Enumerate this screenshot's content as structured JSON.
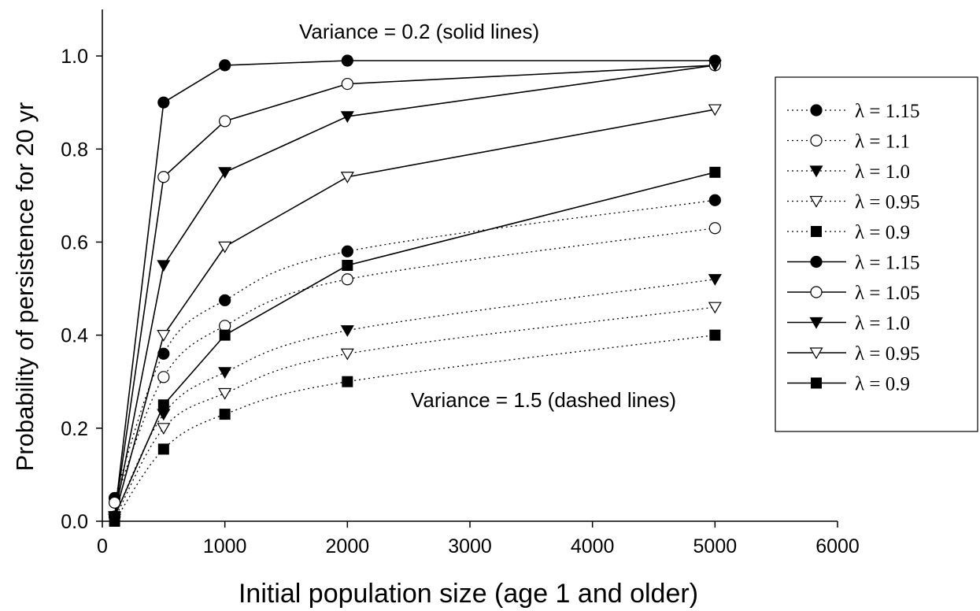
{
  "chart_data": {
    "type": "line",
    "xlabel": "Initial population size (age 1 and older)",
    "ylabel": "Probability of persistence for 20 yr",
    "xlim": [
      0,
      6000
    ],
    "ylim": [
      0,
      1.1
    ],
    "xticks": [
      0,
      1000,
      2000,
      3000,
      4000,
      5000,
      6000
    ],
    "yticks": [
      0.0,
      0.2,
      0.4,
      0.6,
      0.8,
      1.0
    ],
    "ytick_labels": [
      "0.0",
      "0.2",
      "0.4",
      "0.6",
      "0.8",
      "1.0"
    ],
    "x": [
      100,
      500,
      1000,
      2000,
      5000
    ],
    "annotations": [
      {
        "text": "Variance = 0.2 (solid lines)",
        "x": 2400,
        "y": 1.045
      },
      {
        "text": "Variance = 1.5 (dashed lines)",
        "x": 2550,
        "y": 0.255
      }
    ],
    "legend_position": "right",
    "series": [
      {
        "name": "λ = 1.15",
        "style": "dotted",
        "marker": "circle-filled",
        "values": [
          0.05,
          0.36,
          0.475,
          0.58,
          0.69
        ]
      },
      {
        "name": "λ = 1.1",
        "style": "dotted",
        "marker": "circle-open",
        "values": [
          0.04,
          0.31,
          0.42,
          0.52,
          0.63
        ]
      },
      {
        "name": "λ = 1.0",
        "style": "dotted",
        "marker": "triangle-filled",
        "values": [
          0.01,
          0.23,
          0.32,
          0.41,
          0.52
        ]
      },
      {
        "name": "λ = 0.95",
        "style": "dotted",
        "marker": "triangle-open",
        "values": [
          0.005,
          0.2,
          0.275,
          0.36,
          0.46
        ]
      },
      {
        "name": "λ = 0.9",
        "style": "dotted",
        "marker": "square-filled",
        "values": [
          0.0,
          0.155,
          0.23,
          0.3,
          0.4
        ]
      },
      {
        "name": "λ = 1.15",
        "style": "solid",
        "marker": "circle-filled",
        "values": [
          0.01,
          0.9,
          0.98,
          0.99,
          0.99
        ]
      },
      {
        "name": "λ = 1.05",
        "style": "solid",
        "marker": "circle-open",
        "values": [
          0.01,
          0.74,
          0.86,
          0.94,
          0.98
        ]
      },
      {
        "name": "λ = 1.0",
        "style": "solid",
        "marker": "triangle-filled",
        "values": [
          0.01,
          0.55,
          0.75,
          0.87,
          0.98
        ]
      },
      {
        "name": "λ = 0.95",
        "style": "solid",
        "marker": "triangle-open",
        "values": [
          0.01,
          0.4,
          0.59,
          0.74,
          0.885
        ]
      },
      {
        "name": "λ = 0.9",
        "style": "solid",
        "marker": "square-filled",
        "values": [
          0.01,
          0.25,
          0.4,
          0.55,
          0.75
        ]
      }
    ]
  }
}
